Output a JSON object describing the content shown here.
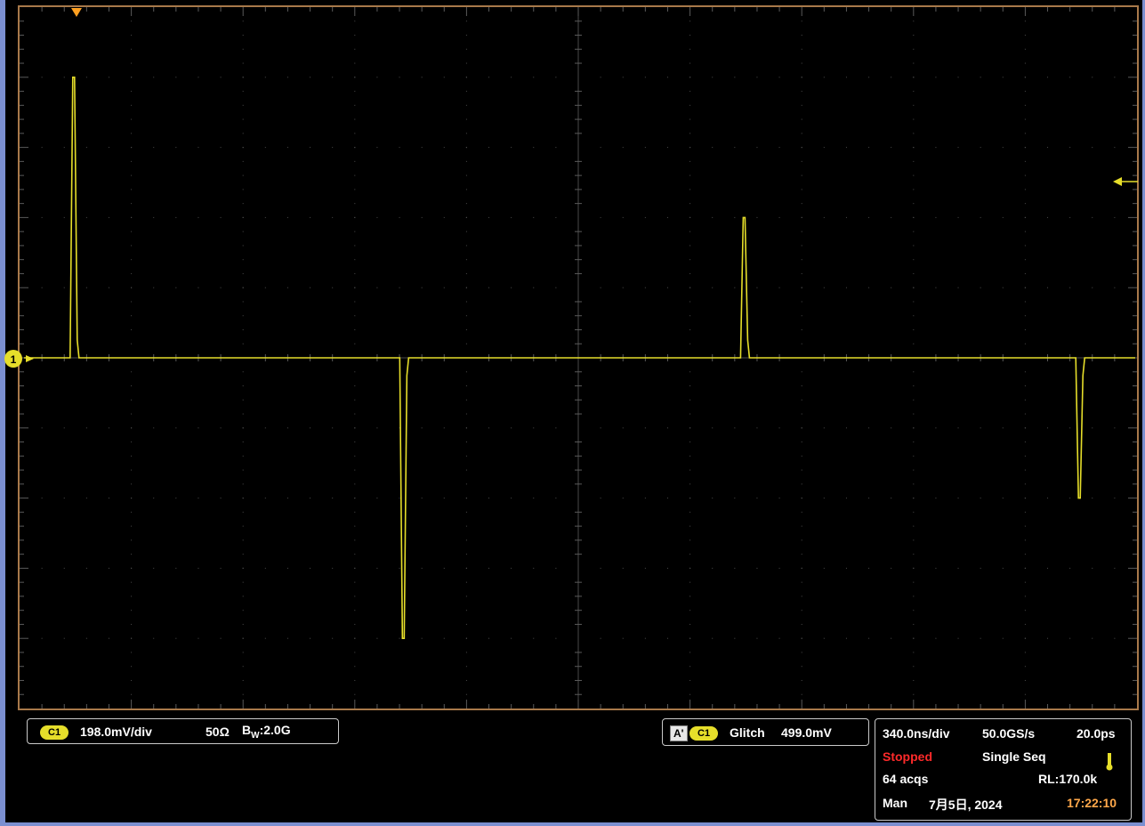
{
  "channel": {
    "badge": "C1",
    "scale": "198.0mV/div",
    "impedance": "50Ω",
    "bandwidth_prefix": "B",
    "bandwidth_sub": "W",
    "bandwidth_value": ":2.0G",
    "marker": "1",
    "color": "#e6de2a"
  },
  "trigger": {
    "mode_badge": "A'",
    "channel_badge": "C1",
    "type": "Glitch",
    "level": "499.0mV"
  },
  "acquisition": {
    "timebase": "340.0ns/div",
    "sample_rate": "50.0GS/s",
    "resolution": "20.0ps",
    "status": "Stopped",
    "status_color": "#ff2a2a",
    "mode": "Single Seq",
    "acqs": "64 acqs",
    "record_length": "RL:170.0k",
    "man": "Man",
    "date": "7月5日, 2024",
    "time": "17:22:10",
    "time_color": "#ffa84a"
  },
  "waveform": {
    "baseline_div": 0,
    "pulses": [
      {
        "time_div": 0.5,
        "amplitude_div": 4.0
      },
      {
        "time_div": 3.45,
        "amplitude_div": -4.0
      },
      {
        "time_div": 6.5,
        "amplitude_div": 2.0
      },
      {
        "time_div": 9.5,
        "amplitude_div": -2.0
      }
    ]
  }
}
